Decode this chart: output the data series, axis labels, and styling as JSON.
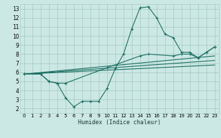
{
  "xlabel": "Humidex (Indice chaleur)",
  "background_color": "#cce8e4",
  "grid_color": "#aaccc8",
  "line_color": "#1a6e62",
  "xlim": [
    -0.5,
    23.5
  ],
  "ylim": [
    1.5,
    13.5
  ],
  "xticks": [
    0,
    1,
    2,
    3,
    4,
    5,
    6,
    7,
    8,
    9,
    10,
    11,
    12,
    13,
    14,
    15,
    16,
    17,
    18,
    19,
    20,
    21,
    22,
    23
  ],
  "yticks": [
    2,
    3,
    4,
    5,
    6,
    7,
    8,
    9,
    10,
    11,
    12,
    13
  ],
  "series": [
    {
      "x": [
        0,
        2,
        3,
        4,
        5,
        6,
        7,
        8,
        9,
        10,
        11,
        12,
        13,
        14,
        15,
        16,
        17,
        18,
        19,
        20,
        21,
        22,
        23
      ],
      "y": [
        5.8,
        5.8,
        5.0,
        4.8,
        3.2,
        2.2,
        2.8,
        2.8,
        2.8,
        4.2,
        6.4,
        8.0,
        10.8,
        13.1,
        13.2,
        12.0,
        10.2,
        9.8,
        8.2,
        8.2,
        7.6,
        8.2,
        8.8
      ],
      "marker": true
    },
    {
      "x": [
        0,
        2,
        3,
        4,
        5,
        10,
        14,
        15,
        18,
        19,
        20,
        21,
        22,
        23
      ],
      "y": [
        5.8,
        5.8,
        5.0,
        4.8,
        4.8,
        6.5,
        7.8,
        8.0,
        7.8,
        8.0,
        8.0,
        7.6,
        8.2,
        8.8
      ],
      "marker": true
    },
    {
      "x": [
        0,
        23
      ],
      "y": [
        5.8,
        7.8
      ],
      "marker": false
    },
    {
      "x": [
        0,
        23
      ],
      "y": [
        5.8,
        7.3
      ],
      "marker": false
    },
    {
      "x": [
        0,
        23
      ],
      "y": [
        5.8,
        6.8
      ],
      "marker": false
    }
  ]
}
